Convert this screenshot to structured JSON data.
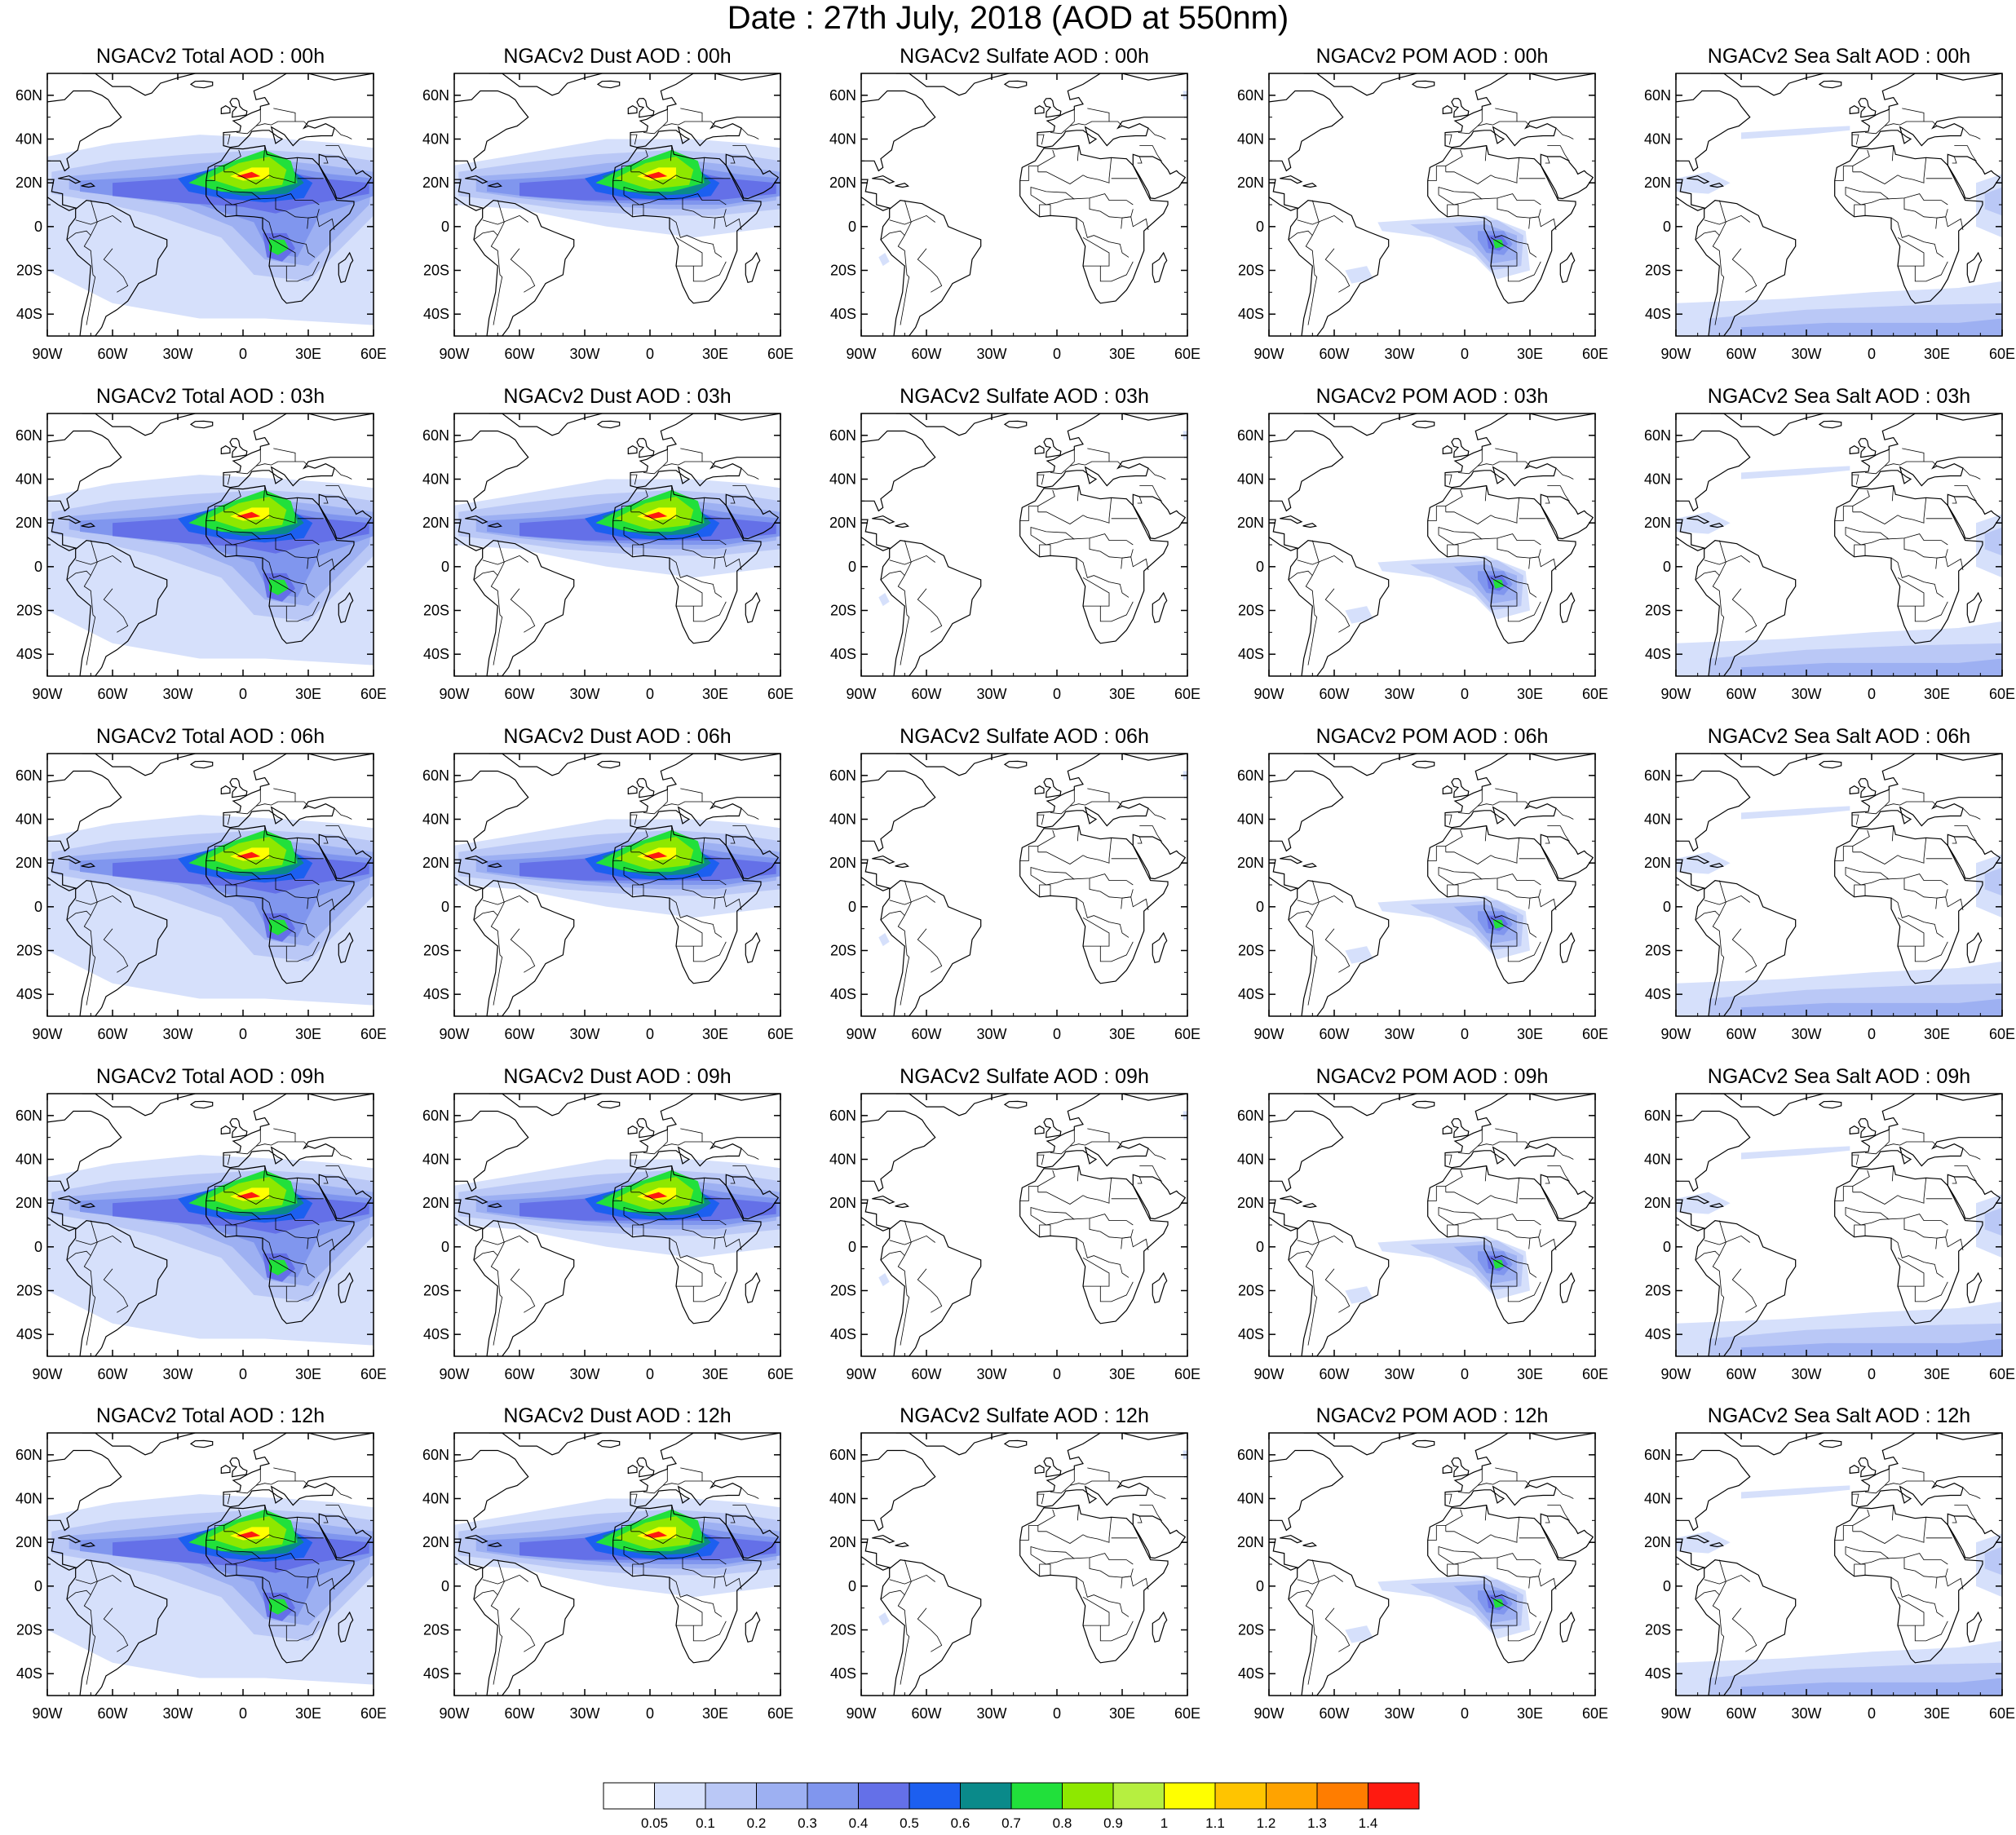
{
  "title": "Date : 27th July, 2018 (AOD at 550nm)",
  "panels": [
    [
      "NGACv2 Total AOD : 00h",
      "NGACv2 Dust AOD : 00h",
      "NGACv2 Sulfate AOD : 00h",
      "NGACv2 POM AOD : 00h",
      "NGACv2 Sea Salt AOD : 00h"
    ],
    [
      "NGACv2 Total AOD : 03h",
      "NGACv2 Dust AOD : 03h",
      "NGACv2 Sulfate AOD : 03h",
      "NGACv2 POM AOD : 03h",
      "NGACv2 Sea Salt AOD : 03h"
    ],
    [
      "NGACv2 Total AOD : 06h",
      "NGACv2 Dust AOD : 06h",
      "NGACv2 Sulfate AOD : 06h",
      "NGACv2 POM AOD : 06h",
      "NGACv2 Sea Salt AOD : 06h"
    ],
    [
      "NGACv2 Total AOD : 09h",
      "NGACv2 Dust AOD : 09h",
      "NGACv2 Sulfate AOD : 09h",
      "NGACv2 POM AOD : 09h",
      "NGACv2 Sea Salt  AOD : 09h"
    ],
    [
      "NGACv2 Total AOD  : 12h",
      "NGACv2 Dust AOD : 12h",
      "NGACv2 Sulfate AOD : 12h",
      "NGACv2 POM  AOD : 12h",
      "NGACv2 Sea Salt  AOD : 12h"
    ]
  ],
  "map": {
    "lon_range": [
      -90,
      60
    ],
    "lat_range": [
      -50,
      70
    ],
    "lon_ticks": [
      "90W",
      "60W",
      "30W",
      "0",
      "30E",
      "60E"
    ],
    "lat_ticks": [
      "60N",
      "40N",
      "20N",
      "0",
      "20S",
      "40S"
    ]
  },
  "colorbar": {
    "labels": [
      "0.05",
      "0.1",
      "0.2",
      "0.3",
      "0.4",
      "0.5",
      "0.6",
      "0.7",
      "0.8",
      "0.9",
      "1",
      "1.1",
      "1.2",
      "1.3",
      "1.4"
    ],
    "colors": [
      "#ffffff",
      "#d6e0fb",
      "#bac8f6",
      "#9db0f2",
      "#8096ee",
      "#6470e8",
      "#1c5ff0",
      "#0a8a8a",
      "#21e03b",
      "#8ee800",
      "#b6ef40",
      "#ffff00",
      "#ffc400",
      "#ffa300",
      "#ff7d00",
      "#ff1a10"
    ]
  }
}
